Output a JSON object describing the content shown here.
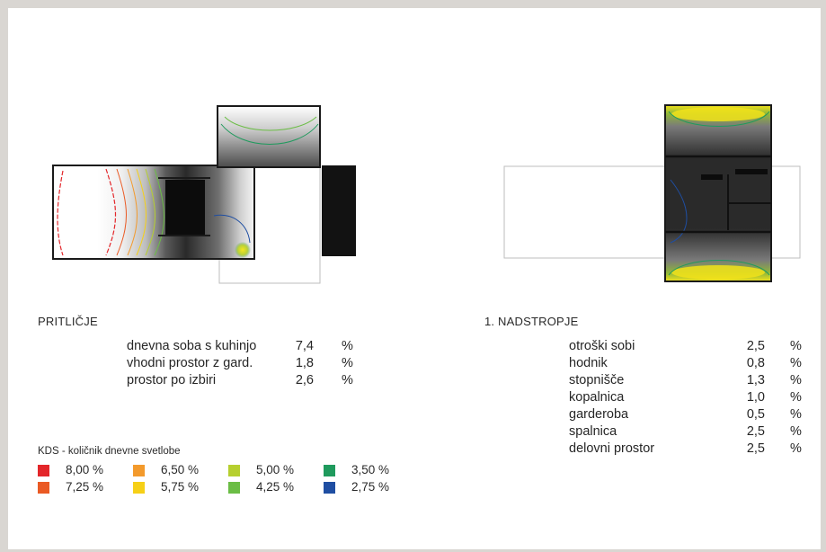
{
  "ground_floor": {
    "title": "PRITLIČJE",
    "rows": [
      {
        "label": "dnevna soba s kuhinjo",
        "value": "7,4",
        "unit": "%"
      },
      {
        "label": "vhodni prostor z gard.",
        "value": "1,8",
        "unit": "%"
      },
      {
        "label": "prostor po izbiri",
        "value": "2,6",
        "unit": "%"
      }
    ]
  },
  "first_floor": {
    "title": "1. NADSTROPJE",
    "rows": [
      {
        "label": "otroški sobi",
        "value": "2,5",
        "unit": "%"
      },
      {
        "label": "hodnik",
        "value": "0,8",
        "unit": "%"
      },
      {
        "label": "stopnišče",
        "value": "1,3",
        "unit": "%"
      },
      {
        "label": "kopalnica",
        "value": "1,0",
        "unit": "%"
      },
      {
        "label": "garderoba",
        "value": "0,5",
        "unit": "%"
      },
      {
        "label": "spalnica",
        "value": "2,5",
        "unit": "%"
      },
      {
        "label": "delovni prostor",
        "value": "2,5",
        "unit": "%"
      }
    ]
  },
  "legend": {
    "title": "KDS - količnik dnevne svetlobe",
    "items": [
      {
        "label": "8,00 %",
        "color": "#e3262a"
      },
      {
        "label": "7,25 %",
        "color": "#ea5a24"
      },
      {
        "label": "6,50 %",
        "color": "#f39a2c"
      },
      {
        "label": "5,75 %",
        "color": "#f6d017"
      },
      {
        "label": "5,00 %",
        "color": "#b6cf2f"
      },
      {
        "label": "4,25 %",
        "color": "#6bbd45"
      },
      {
        "label": "3,50 %",
        "color": "#1f9a5d"
      },
      {
        "label": "2,75 %",
        "color": "#1f4ea2"
      }
    ]
  }
}
